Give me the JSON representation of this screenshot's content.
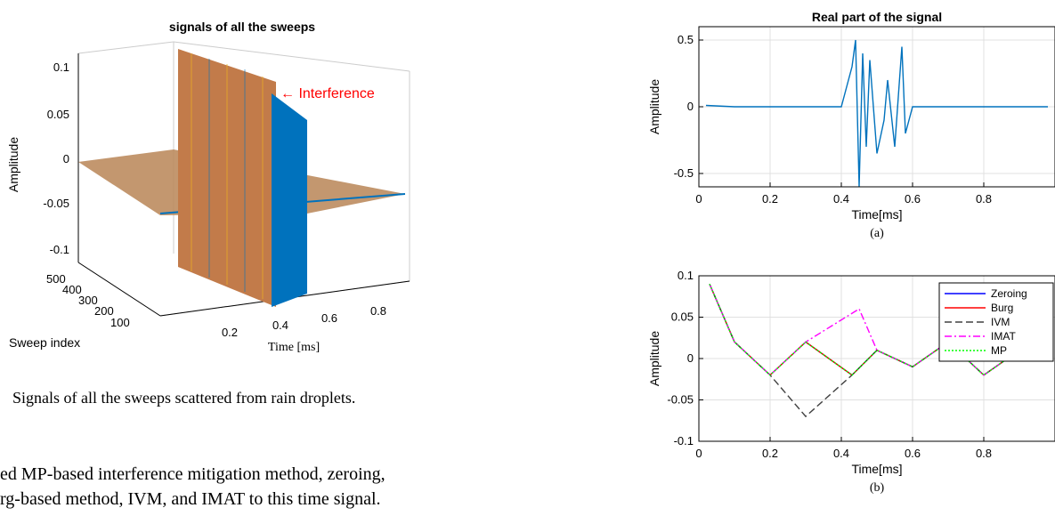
{
  "left_figure": {
    "title": "signals of all the sweeps",
    "ylabel": "Amplitude",
    "xlabel": "Time [ms]",
    "sweep_label": "Sweep index",
    "annotation": "← Interference",
    "colors": {
      "annotation": "#ff0000",
      "main": "#0072bd",
      "accent1": "#d95319",
      "accent2": "#edb120"
    }
  },
  "caption": "Signals of all the sweeps scattered from rain droplets.",
  "body_text": {
    "line1": "ed MP-based interference mitigation method, zeroing,",
    "line2": "rg-based method, IVM, and IMAT to this time signal."
  },
  "chart_data": [
    {
      "type": "line",
      "title": "Real part of the signal",
      "xlabel": "Time[ms]",
      "ylabel": "Amplitude",
      "xlim": [
        0,
        1
      ],
      "ylim": [
        -0.6,
        0.6
      ],
      "xticks": [
        0,
        0.2,
        0.4,
        0.6,
        0.8
      ],
      "yticks": [
        -0.5,
        0,
        0.5
      ],
      "grid": true,
      "sublabel": "(a)",
      "series": [
        {
          "color": "#0072bd",
          "x": [
            0.02,
            0.1,
            0.2,
            0.3,
            0.4,
            0.43,
            0.44,
            0.45,
            0.46,
            0.47,
            0.48,
            0.5,
            0.52,
            0.53,
            0.55,
            0.57,
            0.58,
            0.6,
            0.7,
            0.8,
            0.9,
            0.98
          ],
          "y": [
            0.01,
            0.0,
            0.0,
            0.0,
            0.0,
            0.3,
            0.5,
            -0.6,
            0.4,
            -0.3,
            0.35,
            -0.35,
            -0.1,
            0.2,
            -0.3,
            0.45,
            -0.2,
            0.0,
            0.0,
            0.0,
            0.0,
            0.0
          ]
        }
      ]
    },
    {
      "type": "line",
      "xlabel": "Time[ms]",
      "ylabel": "Amplitude",
      "xlim": [
        0,
        1
      ],
      "ylim": [
        -0.1,
        0.1
      ],
      "xticks": [
        0,
        0.2,
        0.4,
        0.6,
        0.8
      ],
      "yticks": [
        -0.1,
        -0.05,
        0,
        0.05,
        0.1
      ],
      "grid": true,
      "legend": "top-right",
      "sublabel": "(b)",
      "series": [
        {
          "name": "Zeroing",
          "color": "#0000ff",
          "style": "solid",
          "x": [
            0.03,
            0.1,
            0.2,
            0.3,
            0.43,
            0.5,
            0.6,
            0.7,
            0.8,
            0.9,
            0.98
          ],
          "y": [
            0.09,
            0.02,
            -0.02,
            0.02,
            -0.02,
            0.01,
            -0.01,
            0.02,
            -0.02,
            0.01,
            0.0
          ]
        },
        {
          "name": "Burg",
          "color": "#ff0000",
          "style": "solid",
          "x": [
            0.03,
            0.1,
            0.2,
            0.3,
            0.43,
            0.5,
            0.6,
            0.7,
            0.8,
            0.9,
            0.98
          ],
          "y": [
            0.09,
            0.02,
            -0.02,
            0.02,
            -0.02,
            0.01,
            -0.01,
            0.02,
            -0.02,
            0.01,
            0.0
          ]
        },
        {
          "name": "IVM",
          "color": "#404040",
          "style": "dashed",
          "x": [
            0.03,
            0.1,
            0.2,
            0.3,
            0.43,
            0.5,
            0.6,
            0.7,
            0.8,
            0.9,
            0.98
          ],
          "y": [
            0.09,
            0.02,
            -0.02,
            -0.07,
            -0.02,
            0.01,
            -0.01,
            0.02,
            -0.02,
            0.01,
            0.0
          ]
        },
        {
          "name": "IMAT",
          "color": "#ff00ff",
          "style": "dashdot",
          "x": [
            0.03,
            0.1,
            0.2,
            0.3,
            0.45,
            0.5,
            0.6,
            0.7,
            0.8,
            0.9,
            0.98
          ],
          "y": [
            0.09,
            0.02,
            -0.02,
            0.02,
            0.06,
            0.01,
            -0.01,
            0.02,
            -0.02,
            0.01,
            0.0
          ]
        },
        {
          "name": "MP",
          "color": "#00ff00",
          "style": "dotted",
          "x": [
            0.03,
            0.1,
            0.2,
            0.3,
            0.43,
            0.5,
            0.6,
            0.7,
            0.8,
            0.9,
            0.98
          ],
          "y": [
            0.09,
            0.02,
            -0.02,
            0.02,
            -0.02,
            0.01,
            -0.01,
            0.02,
            -0.02,
            0.01,
            0.0
          ]
        }
      ]
    }
  ],
  "left_axes": {
    "yticks": [
      "0.1",
      "0.05",
      "0",
      "-0.05",
      "-0.1"
    ],
    "xticks": [
      "0.2",
      "0.4",
      "0.6",
      "0.8"
    ],
    "sweep_ticks": [
      "500",
      "400",
      "300",
      "200",
      "100"
    ]
  }
}
